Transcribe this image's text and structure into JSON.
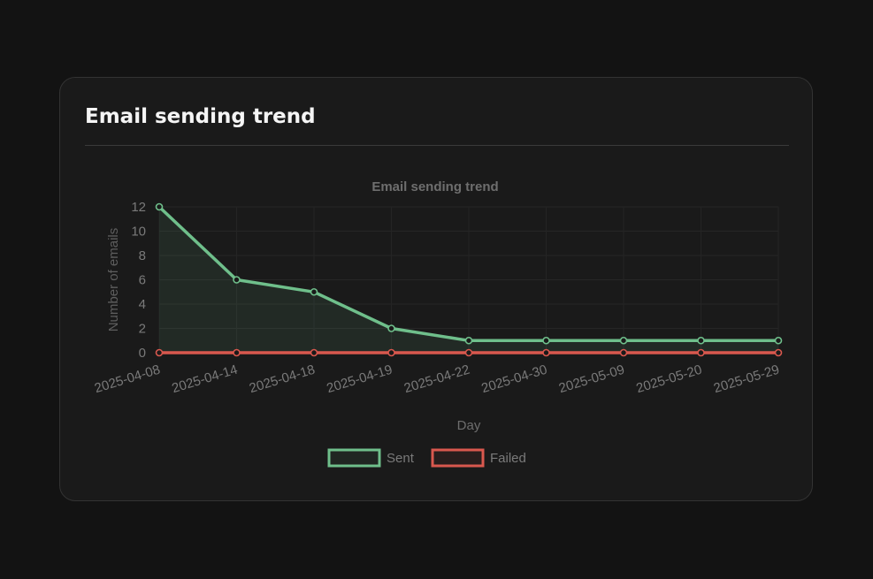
{
  "card": {
    "title": "Email sending trend"
  },
  "chart_data": {
    "type": "line",
    "title": "Email sending trend",
    "xlabel": "Day",
    "ylabel": "Number of emails",
    "categories": [
      "2025-04-08",
      "2025-04-14",
      "2025-04-18",
      "2025-04-19",
      "2025-04-22",
      "2025-04-30",
      "2025-05-09",
      "2025-05-20",
      "2025-05-29"
    ],
    "ylim": [
      0,
      12
    ],
    "yticks": [
      0,
      2,
      4,
      6,
      8,
      10,
      12
    ],
    "grid": true,
    "legend_position": "bottom",
    "series": [
      {
        "name": "Sent",
        "values": [
          12,
          6,
          5,
          2,
          1,
          1,
          1,
          1,
          1
        ],
        "color": "#6fbf8b",
        "fill": true
      },
      {
        "name": "Failed",
        "values": [
          0,
          0,
          0,
          0,
          0,
          0,
          0,
          0,
          0
        ],
        "color": "#d9584e",
        "fill": false
      }
    ]
  },
  "colors": {
    "background": "#131313",
    "card": "#1a1a1a",
    "text_muted": "#7a7a7a"
  }
}
